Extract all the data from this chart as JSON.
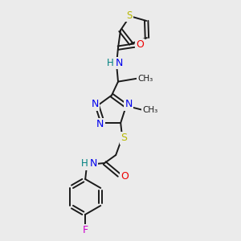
{
  "background_color": "#ebebeb",
  "bond_color": "#1a1a1a",
  "atom_colors": {
    "S": "#b8b800",
    "N": "#0000ee",
    "O": "#ee0000",
    "F": "#cc00cc",
    "H": "#008080",
    "C": "#1a1a1a"
  },
  "figsize": [
    3.0,
    3.0
  ],
  "dpi": 100
}
